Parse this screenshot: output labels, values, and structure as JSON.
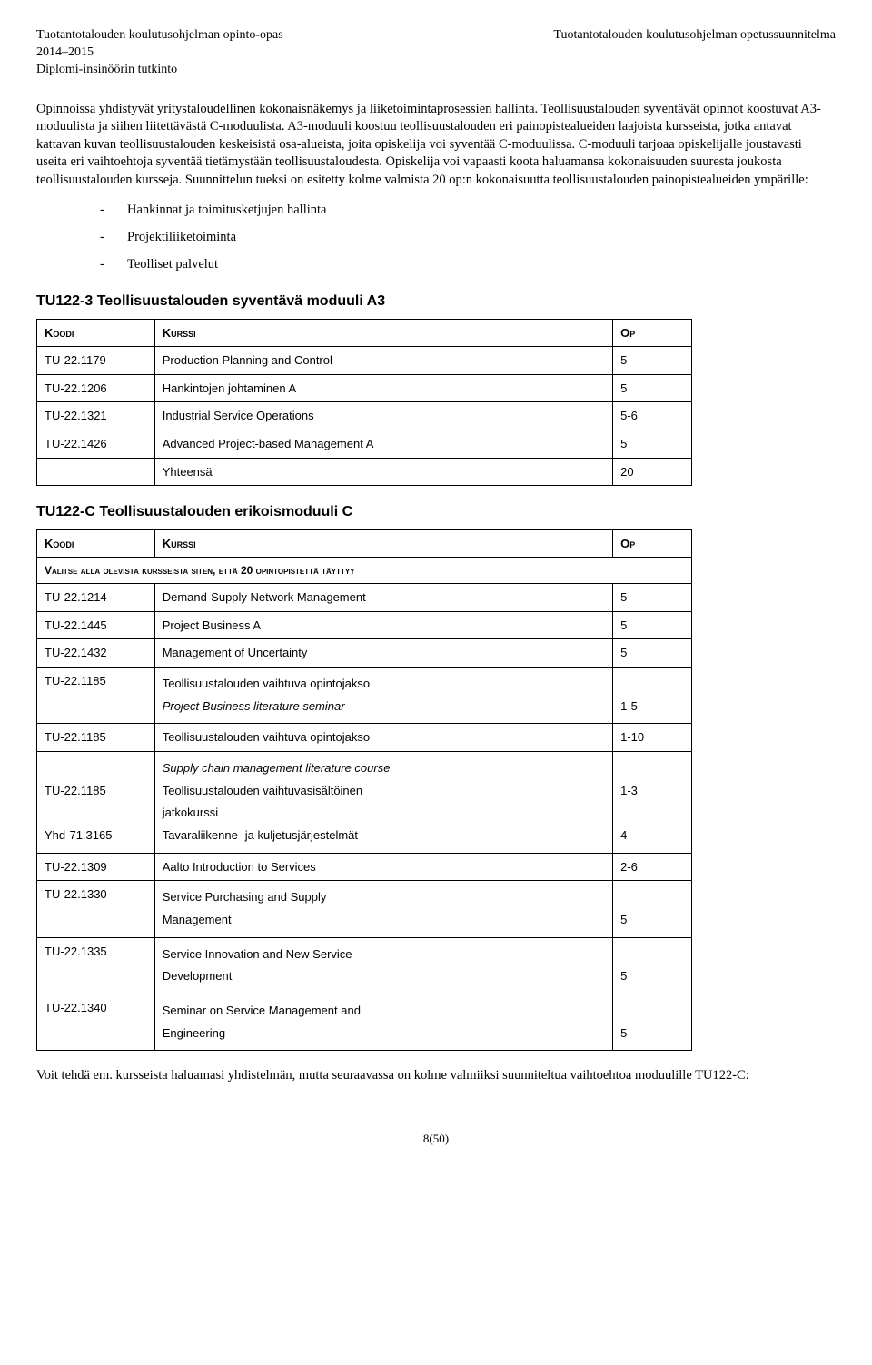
{
  "header": {
    "left_line1": "Tuotantotalouden koulutusohjelman opinto-opas",
    "left_line2": "2014–2015",
    "left_line3": "Diplomi-insinöörin tutkinto",
    "right_line1": "Tuotantotalouden koulutusohjelman opetussuunnitelma"
  },
  "intro": {
    "para": "Opinnoissa yhdistyvät yritystaloudellinen kokonaisnäkemys ja liiketoimintaprosessien hallinta. Teollisuustalouden syventävät opinnot koostuvat A3-moduulista ja siihen liitettävästä C-moduulista. A3-moduuli koostuu teollisuustalouden eri painopistealueiden laajoista kursseista, jotka antavat kattavan kuvan teollisuustalouden keskeisistä osa-alueista, joita opiskelija voi syventää C-moduulissa. C-moduuli tarjoaa opiskelijalle joustavasti useita eri vaihtoehtoja syventää tietämystään teollisuustaloudesta. Opiskelija voi vapaasti koota haluamansa kokonaisuuden suuresta joukosta teollisuustalouden kursseja. Suunnittelun tueksi on esitetty kolme valmista 20 op:n kokonaisuutta teollisuustalouden painopistealueiden ympärille:",
    "bullets": [
      "Hankinnat ja toimitusketjujen hallinta",
      "Projektiliiketoiminta",
      "Teolliset palvelut"
    ]
  },
  "table1": {
    "heading": "TU122-3 Teollisuustalouden syventävä moduuli A3",
    "col_code": "Koodi",
    "col_course": "Kurssi",
    "col_op": "Op",
    "rows": [
      {
        "code": "TU-22.1179",
        "course": "Production Planning and Control",
        "op": "5"
      },
      {
        "code": "TU-22.1206",
        "course": "Hankintojen johtaminen A",
        "op": "5"
      },
      {
        "code": "TU-22.1321",
        "course": "Industrial Service Operations",
        "op": "5-6"
      },
      {
        "code": "TU-22.1426",
        "course": "Advanced Project-based Management A",
        "op": "5"
      }
    ],
    "total_label": "Yhteensä",
    "total_value": "20"
  },
  "table2": {
    "heading": "TU122-C Teollisuustalouden erikoismoduuli C",
    "col_code": "Koodi",
    "col_course": "Kurssi",
    "col_op": "Op",
    "note": "Valitse alla olevista kursseista siten, että 20 opintopistettä täyttyy",
    "rows": [
      {
        "code": "TU-22.1214",
        "course": "Demand-Supply Network Management",
        "op": "5"
      },
      {
        "code": "TU-22.1445",
        "course": "Project Business A",
        "op": "5"
      },
      {
        "code": "TU-22.1432",
        "course": "Management of Uncertainty",
        "op": "5"
      },
      {
        "code": "TU-22.1185",
        "course_l1": "Teollisuustalouden vaihtuva opintojakso",
        "course_l2": "Project Business literature seminar",
        "course_l2_italic": true,
        "op": "1-5",
        "op_bottom": true
      },
      {
        "code": "TU-22.1185",
        "course": "Teollisuustalouden vaihtuva opintojakso",
        "op": "1-10"
      },
      {
        "code_l1": "",
        "code_l2": "TU-22.1185",
        "code_l3": "",
        "code_l4": "Yhd-71.3165",
        "course_l1": "Supply chain management literature course",
        "course_l1_italic": true,
        "course_l2": "Teollisuustalouden vaihtuvasisältöinen",
        "course_l3": "jatkokurssi",
        "course_l4": "Tavaraliikenne- ja kuljetusjärjestelmät",
        "op_l2": "1-3",
        "op_l4": "4"
      },
      {
        "code": "TU-22.1309",
        "course": "Aalto Introduction to Services",
        "op": "2-6"
      },
      {
        "code": "TU-22.1330",
        "course_l1": "Service Purchasing and Supply",
        "course_l2": "Management",
        "op": "5",
        "op_bottom": true
      },
      {
        "code": "TU-22.1335",
        "course_l1": "Service Innovation and New Service",
        "course_l2": "Development",
        "op": "5",
        "op_bottom": true
      },
      {
        "code": "TU-22.1340",
        "course_l1": "Seminar on Service Management and",
        "course_l2": "Engineering",
        "op": "5",
        "op_bottom": true
      }
    ]
  },
  "closing": {
    "para": "Voit tehdä em. kursseista haluamasi yhdistelmän, mutta seuraavassa on kolme valmiiksi suunniteltua vaihtoehtoa moduulille TU122-C:"
  },
  "footer": {
    "page": "8(50)"
  }
}
